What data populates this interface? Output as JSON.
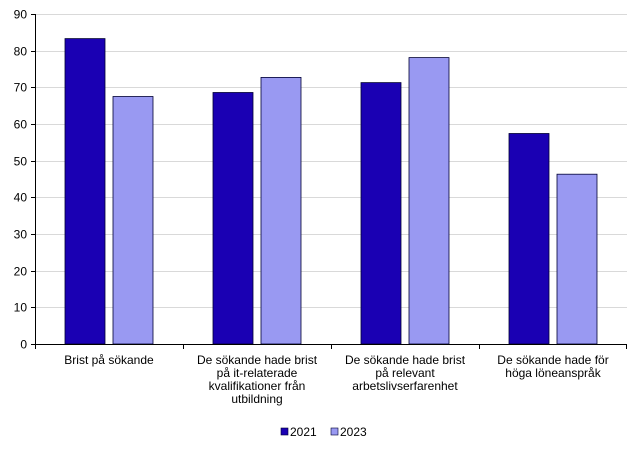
{
  "chart_data": {
    "type": "bar",
    "categories": [
      [
        "Brist på sökande"
      ],
      [
        "De sökande hade brist",
        "på it-relaterade",
        "kvalifikationer från",
        "utbildning"
      ],
      [
        "De sökande hade brist",
        "på relevant",
        "arbetslivserfarenhet"
      ],
      [
        "De sökande hade för",
        "höga löneanspråk"
      ]
    ],
    "series": [
      {
        "name": "2021",
        "values": [
          83.3,
          68.6,
          71.3,
          57.4
        ],
        "color": "#1a00b3"
      },
      {
        "name": "2023",
        "values": [
          67.5,
          72.7,
          78.1,
          46.3
        ],
        "color": "#9999f2"
      }
    ],
    "yticks": [
      "0",
      "10",
      "20",
      "30",
      "40",
      "50",
      "60",
      "70",
      "80",
      "90"
    ],
    "ylim": [
      0,
      90
    ],
    "grid": true,
    "legend": "bottom-center"
  }
}
